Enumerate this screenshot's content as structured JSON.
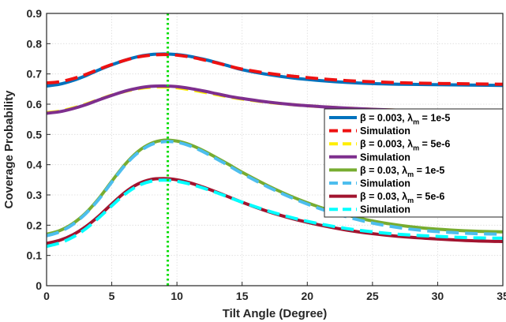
{
  "chart_data": {
    "type": "line",
    "title": "",
    "xlabel": "Tilt Angle (Degree)",
    "ylabel": "Coverage Probability",
    "xlim": [
      0,
      35
    ],
    "ylim": [
      0,
      0.9
    ],
    "xticks": [
      "0",
      "5",
      "10",
      "15",
      "20",
      "25",
      "30",
      "35"
    ],
    "yticks": [
      "0",
      "0.1",
      "0.2",
      "0.3",
      "0.4",
      "0.5",
      "0.6",
      "0.7",
      "0.8",
      "0.9"
    ],
    "grid": true,
    "legend_position": "right",
    "vertical_reference_line": {
      "x": 9.3,
      "color": "#00dd00",
      "style": "dotted"
    },
    "x": [
      0,
      1,
      2,
      3,
      4,
      5,
      6,
      7,
      8,
      9,
      10,
      11,
      12,
      13,
      14,
      15,
      17,
      19,
      21,
      23,
      25,
      27,
      29,
      31,
      33,
      35
    ],
    "series": [
      {
        "legend_text": "β = 0.003, λm = 1e-5",
        "legend_prefix": "β = 0.003, λ",
        "legend_sub": "m",
        "legend_suffix": " = 1e-5",
        "color": "#0072bd",
        "style": "solid",
        "values": [
          0.66,
          0.666,
          0.678,
          0.694,
          0.713,
          0.73,
          0.745,
          0.757,
          0.764,
          0.766,
          0.764,
          0.758,
          0.749,
          0.738,
          0.726,
          0.714,
          0.698,
          0.686,
          0.678,
          0.672,
          0.668,
          0.666,
          0.665,
          0.664,
          0.663,
          0.662
        ]
      },
      {
        "legend_text": "Simulation",
        "color": "#ee1111",
        "style": "dashed",
        "values": [
          0.67,
          0.674,
          0.684,
          0.698,
          0.715,
          0.731,
          0.745,
          0.756,
          0.762,
          0.764,
          0.762,
          0.756,
          0.747,
          0.737,
          0.726,
          0.716,
          0.702,
          0.692,
          0.684,
          0.678,
          0.674,
          0.671,
          0.669,
          0.668,
          0.667,
          0.666
        ]
      },
      {
        "legend_text": "β = 0.003, λm = 5e-6",
        "legend_prefix": "β = 0.003, λ",
        "legend_sub": "m",
        "legend_suffix": " = 5e-6",
        "color": "#ffee00",
        "style": "dashed",
        "values": [
          0.572,
          0.577,
          0.587,
          0.6,
          0.615,
          0.63,
          0.642,
          0.651,
          0.656,
          0.657,
          0.654,
          0.648,
          0.64,
          0.632,
          0.624,
          0.617,
          0.606,
          0.598,
          0.592,
          0.587,
          0.583,
          0.58,
          0.578,
          0.576,
          0.575,
          0.574
        ]
      },
      {
        "legend_text": "Simulation",
        "color": "#7e2f8e",
        "style": "solid",
        "values": [
          0.57,
          0.575,
          0.585,
          0.598,
          0.614,
          0.629,
          0.643,
          0.653,
          0.659,
          0.66,
          0.658,
          0.652,
          0.644,
          0.635,
          0.626,
          0.619,
          0.607,
          0.598,
          0.592,
          0.587,
          0.583,
          0.58,
          0.578,
          0.576,
          0.575,
          0.574
        ]
      },
      {
        "legend_text": "β = 0.03, λm = 1e-5",
        "legend_prefix": "β = 0.03, λ",
        "legend_sub": "m",
        "legend_suffix": " = 1e-5",
        "color": "#77ac30",
        "style": "solid",
        "values": [
          0.17,
          0.182,
          0.205,
          0.24,
          0.288,
          0.345,
          0.4,
          0.443,
          0.47,
          0.481,
          0.478,
          0.466,
          0.447,
          0.424,
          0.4,
          0.375,
          0.33,
          0.291,
          0.259,
          0.234,
          0.214,
          0.2,
          0.19,
          0.184,
          0.18,
          0.178
        ]
      },
      {
        "legend_text": "Simulation",
        "color": "#4dbeee",
        "style": "dashed",
        "values": [
          0.165,
          0.178,
          0.202,
          0.238,
          0.285,
          0.342,
          0.397,
          0.439,
          0.466,
          0.476,
          0.474,
          0.462,
          0.443,
          0.42,
          0.396,
          0.371,
          0.326,
          0.287,
          0.254,
          0.228,
          0.207,
          0.192,
          0.182,
          0.176,
          0.172,
          0.17
        ]
      },
      {
        "legend_text": "β = 0.03, λm = 5e-6",
        "legend_prefix": "β = 0.03, λ",
        "legend_sub": "m",
        "legend_suffix": " = 5e-6",
        "color": "#a2142f",
        "style": "solid",
        "values": [
          0.14,
          0.15,
          0.168,
          0.195,
          0.23,
          0.27,
          0.308,
          0.336,
          0.351,
          0.354,
          0.35,
          0.34,
          0.326,
          0.31,
          0.293,
          0.276,
          0.245,
          0.22,
          0.2,
          0.184,
          0.172,
          0.163,
          0.157,
          0.152,
          0.148,
          0.146
        ]
      },
      {
        "legend_text": "Simulation",
        "color": "#00ffff",
        "style": "dashed",
        "values": [
          0.13,
          0.141,
          0.16,
          0.188,
          0.224,
          0.264,
          0.302,
          0.33,
          0.345,
          0.349,
          0.345,
          0.336,
          0.323,
          0.308,
          0.292,
          0.276,
          0.247,
          0.223,
          0.204,
          0.189,
          0.178,
          0.17,
          0.165,
          0.161,
          0.158,
          0.157
        ]
      }
    ]
  }
}
